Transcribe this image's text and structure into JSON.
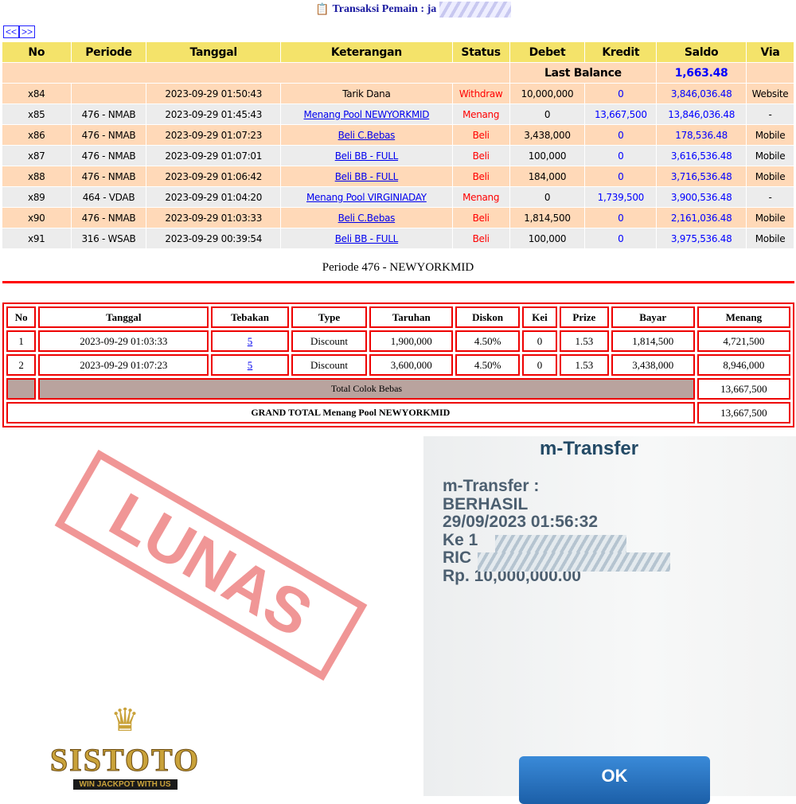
{
  "header": {
    "title": "Transaksi  Pemain : ja",
    "icon": "clipboard-icon"
  },
  "nav": {
    "prev": "<<",
    "next": ">>"
  },
  "transactions": {
    "columns": [
      "No",
      "Periode",
      "Tanggal",
      "Keterangan",
      "Status",
      "Debet",
      "Kredit",
      "Saldo",
      "Via"
    ],
    "last_balance_label": "Last Balance",
    "last_balance": "1,663.48",
    "rows": [
      {
        "no": "x84",
        "periode": "",
        "tanggal": "2023-09-29 01:50:43",
        "keterangan": "Tarik Dana",
        "link": false,
        "status": "Withdraw",
        "debet": "10,000,000",
        "kredit": "0",
        "saldo": "3,846,036.48",
        "via": "Website"
      },
      {
        "no": "x85",
        "periode": "476 - NMAB",
        "tanggal": "2023-09-29 01:45:43",
        "keterangan": "Menang Pool NEWYORKMID",
        "link": true,
        "status": "Menang",
        "debet": "0",
        "kredit": "13,667,500",
        "saldo": "13,846,036.48",
        "via": "-"
      },
      {
        "no": "x86",
        "periode": "476 - NMAB",
        "tanggal": "2023-09-29 01:07:23",
        "keterangan": "Beli C.Bebas",
        "link": true,
        "status": "Beli",
        "debet": "3,438,000",
        "kredit": "0",
        "saldo": "178,536.48",
        "via": "Mobile"
      },
      {
        "no": "x87",
        "periode": "476 - NMAB",
        "tanggal": "2023-09-29 01:07:01",
        "keterangan": "Beli BB - FULL",
        "link": true,
        "status": "Beli",
        "debet": "100,000",
        "kredit": "0",
        "saldo": "3,616,536.48",
        "via": "Mobile"
      },
      {
        "no": "x88",
        "periode": "476 - NMAB",
        "tanggal": "2023-09-29 01:06:42",
        "keterangan": "Beli BB - FULL",
        "link": true,
        "status": "Beli",
        "debet": "184,000",
        "kredit": "0",
        "saldo": "3,716,536.48",
        "via": "Mobile"
      },
      {
        "no": "x89",
        "periode": "464 - VDAB",
        "tanggal": "2023-09-29 01:04:20",
        "keterangan": "Menang Pool VIRGINIADAY",
        "link": true,
        "status": "Menang",
        "debet": "0",
        "kredit": "1,739,500",
        "saldo": "3,900,536.48",
        "via": "-"
      },
      {
        "no": "x90",
        "periode": "476 - NMAB",
        "tanggal": "2023-09-29 01:03:33",
        "keterangan": "Beli C.Bebas",
        "link": true,
        "status": "Beli",
        "debet": "1,814,500",
        "kredit": "0",
        "saldo": "2,161,036.48",
        "via": "Mobile"
      },
      {
        "no": "x91",
        "periode": "316 - WSAB",
        "tanggal": "2023-09-29 00:39:54",
        "keterangan": "Beli BB - FULL",
        "link": true,
        "status": "Beli",
        "debet": "100,000",
        "kredit": "0",
        "saldo": "3,975,536.48",
        "via": "Mobile"
      }
    ]
  },
  "periode": {
    "title": "Periode 476 - NEWYORKMID",
    "columns": [
      "No",
      "Tanggal",
      "Tebakan",
      "Type",
      "Taruhan",
      "Diskon",
      "Kei",
      "Prize",
      "Bayar",
      "Menang"
    ],
    "rows": [
      {
        "no": "1",
        "tanggal": "2023-09-29 01:03:33",
        "tebakan": "5",
        "type": "Discount",
        "taruhan": "1,900,000",
        "diskon": "4.50%",
        "kei": "0",
        "prize": "1.53",
        "bayar": "1,814,500",
        "menang": "4,721,500"
      },
      {
        "no": "2",
        "tanggal": "2023-09-29 01:07:23",
        "tebakan": "5",
        "type": "Discount",
        "taruhan": "3,600,000",
        "diskon": "4.50%",
        "kei": "0",
        "prize": "1.53",
        "bayar": "3,438,000",
        "menang": "8,946,000"
      }
    ],
    "total_label": "Total Colok Bebas",
    "total": "13,667,500",
    "grand_label": "GRAND TOTAL  Menang Pool NEWYORKMID",
    "grand_total": "13,667,500"
  },
  "mtransfer": {
    "title": "m-Transfer",
    "line1": "m-Transfer :",
    "line2": "BERHASIL",
    "line3": "29/09/2023 01:56:32",
    "line4": "Ke 1",
    "line5": "RIC",
    "line6": "Rp. 10,000,000.00",
    "ok": "OK"
  },
  "stamp": "LUNAS",
  "logo": {
    "name": "SISTOTO",
    "tagline": "WIN JACKPOT WITH US"
  },
  "colors": {
    "header": "#f4e36a",
    "row_odd": "#ffd9b8",
    "row_even": "#ececec",
    "accent_red": "#ff0000",
    "link": "#0000ee"
  }
}
